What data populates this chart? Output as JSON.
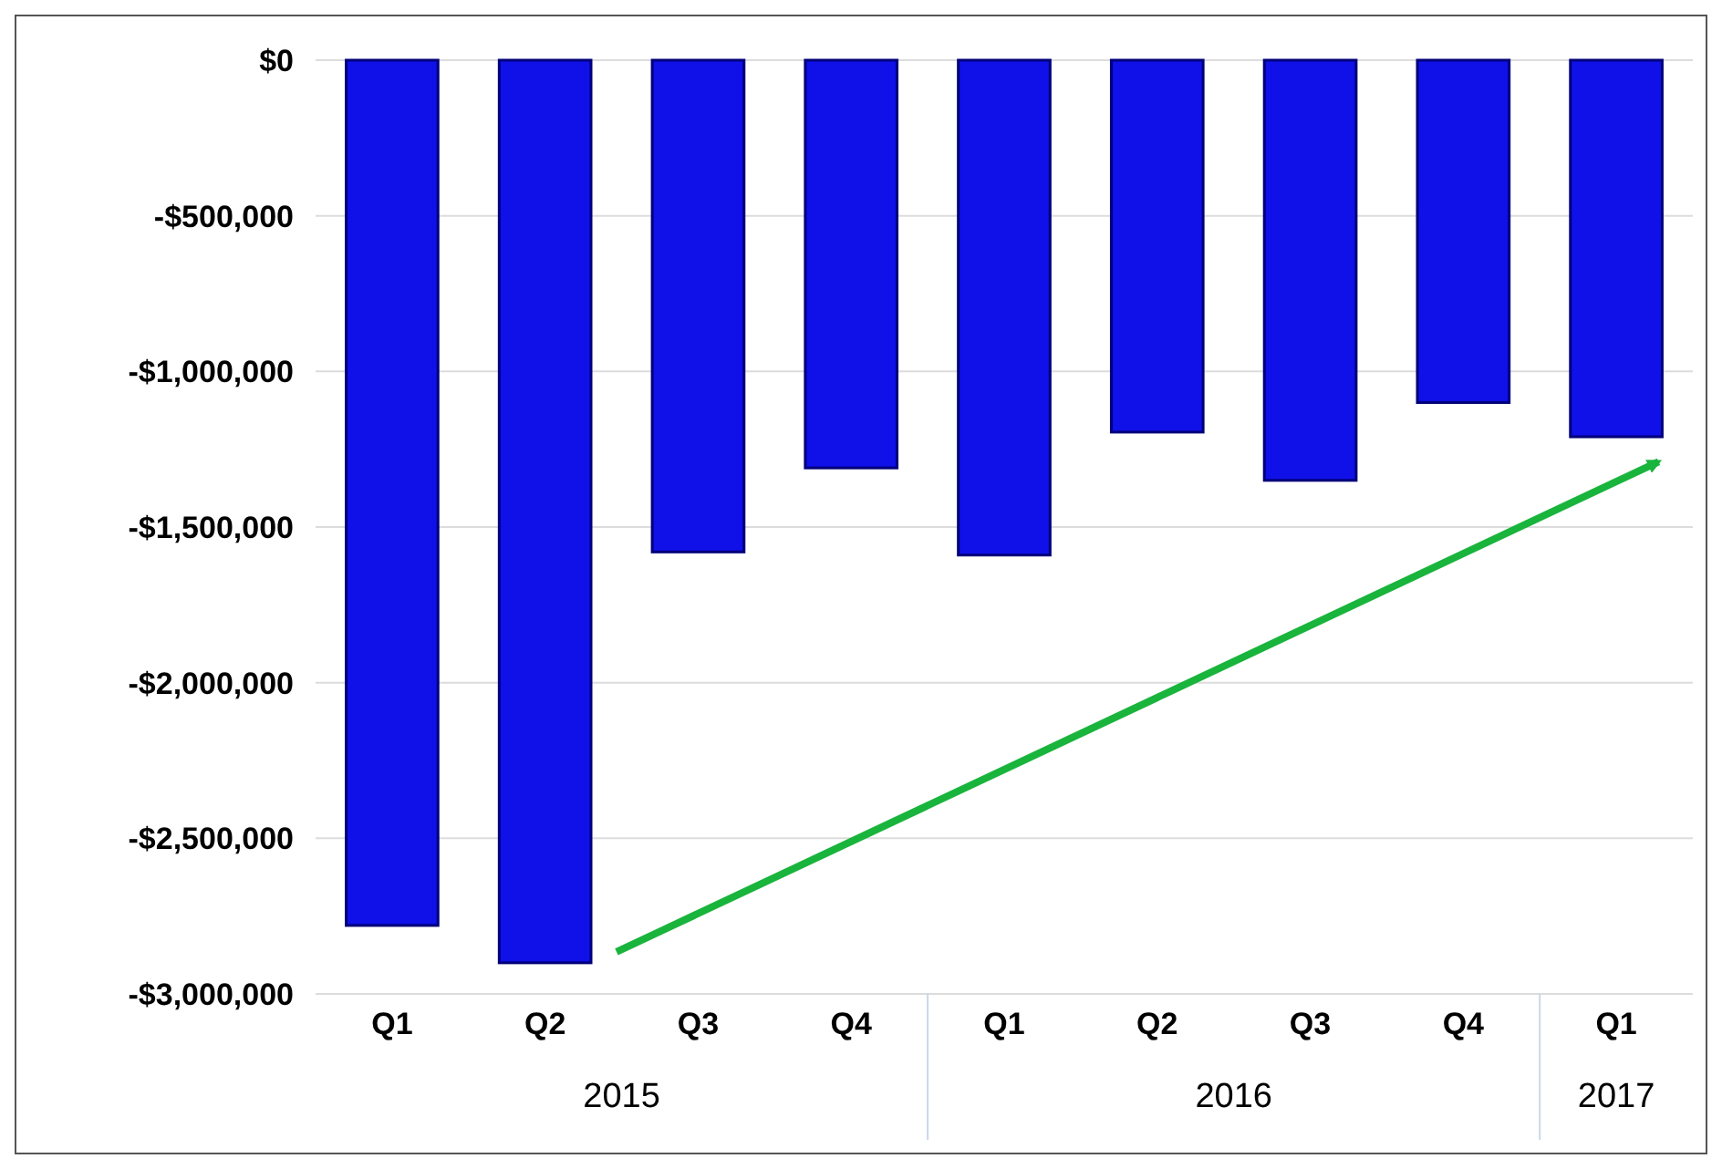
{
  "chart_data": {
    "type": "bar",
    "categories": [
      "Q1",
      "Q2",
      "Q3",
      "Q4",
      "Q1",
      "Q2",
      "Q3",
      "Q4",
      "Q1"
    ],
    "values": [
      -2780000,
      -2900000,
      -1580000,
      -1310000,
      -1590000,
      -1195000,
      -1350000,
      -1100000,
      -1210000
    ],
    "color": "#1010e8",
    "ylim": [
      -3000000,
      0
    ],
    "yticks": [
      {
        "value": 0,
        "label": "$0"
      },
      {
        "value": -500000,
        "label": "-$500,000"
      },
      {
        "value": -1000000,
        "label": "-$1,000,000"
      },
      {
        "value": -1500000,
        "label": "-$1,500,000"
      },
      {
        "value": -2000000,
        "label": "-$2,000,000"
      },
      {
        "value": -2500000,
        "label": "-$2,500,000"
      },
      {
        "value": -3000000,
        "label": "-$3,000,000"
      }
    ],
    "grid": "y",
    "annotations": [
      "2015",
      "2016",
      "2017"
    ]
  }
}
